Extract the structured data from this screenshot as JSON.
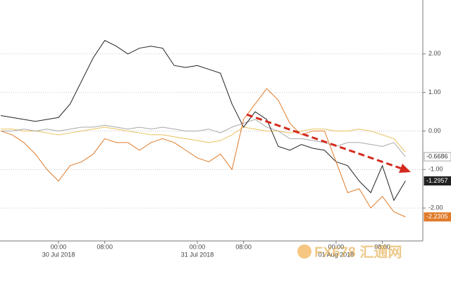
{
  "chart_data": {
    "type": "line",
    "x": [
      -10,
      -8,
      -6,
      -4,
      -2,
      0,
      2,
      4,
      6,
      8,
      10,
      12,
      14,
      16,
      18,
      20,
      22,
      24,
      26,
      28,
      30,
      32,
      34,
      36,
      38,
      40,
      42,
      44,
      46,
      48,
      50,
      52,
      54,
      56,
      58,
      60
    ],
    "xlim": [
      -10,
      63
    ],
    "xticks": [
      {
        "value": 0,
        "label": "00:00"
      },
      {
        "value": 8,
        "label": "08:00"
      },
      {
        "value": 24,
        "label": "00:00"
      },
      {
        "value": 32,
        "label": "08:00"
      },
      {
        "value": 48,
        "label": "00:00"
      },
      {
        "value": 56,
        "label": "08:00"
      }
    ],
    "date_labels": [
      {
        "value": 0,
        "label": "30 Jul 2018"
      },
      {
        "value": 24,
        "label": "31 Jul 2018"
      },
      {
        "value": 48,
        "label": "01 Aug 2018"
      }
    ],
    "ylim": [
      -2.8,
      3.4
    ],
    "yticks": [
      {
        "value": 2,
        "label": "2.00"
      },
      {
        "value": 1,
        "label": "1.00"
      },
      {
        "value": 0,
        "label": "0.00"
      },
      {
        "value": -1,
        "label": "-1.00"
      },
      {
        "value": -2,
        "label": "-2.00"
      }
    ],
    "grid": true,
    "series": [
      {
        "color": "#e8c15a",
        "values": [
          0.05,
          0.05,
          0.0,
          0.0,
          -0.05,
          -0.1,
          -0.05,
          0.0,
          0.05,
          0.1,
          0.05,
          0.0,
          -0.05,
          -0.1,
          -0.1,
          -0.15,
          -0.2,
          -0.25,
          -0.3,
          -0.25,
          -0.1,
          0.1,
          0.05,
          0.0,
          0.0,
          -0.05,
          0.0,
          0.05,
          0.05,
          0.0,
          0.0,
          0.05,
          0.0,
          -0.1,
          -0.2,
          -0.55
        ]
      },
      {
        "color": "#a8a8a8",
        "values": [
          0.0,
          0.0,
          0.05,
          0.0,
          0.05,
          0.0,
          0.05,
          0.1,
          0.1,
          0.15,
          0.1,
          0.05,
          0.1,
          0.05,
          0.1,
          0.05,
          0.0,
          0.0,
          0.05,
          -0.05,
          0.1,
          0.2,
          0.3,
          0.1,
          0.0,
          -0.2,
          -0.2,
          -0.25,
          -0.3,
          -0.4,
          -0.3,
          -0.3,
          -0.35,
          -0.4,
          -0.3,
          -0.6686
        ],
        "last_label": "-0.6686"
      },
      {
        "color": "#222222",
        "values": [
          0.4,
          0.35,
          0.3,
          0.25,
          0.3,
          0.35,
          0.7,
          1.3,
          1.9,
          2.35,
          2.2,
          2.0,
          2.15,
          2.2,
          2.15,
          1.7,
          1.65,
          1.7,
          1.6,
          1.5,
          0.7,
          0.1,
          0.5,
          0.3,
          -0.4,
          -0.5,
          -0.35,
          -0.45,
          -0.5,
          -0.8,
          -0.9,
          -1.3,
          -1.6,
          -0.9,
          -1.8,
          -1.2957
        ],
        "last_label": "-1.2957"
      },
      {
        "color": "#e07b2a",
        "values": [
          0.0,
          -0.1,
          -0.3,
          -0.6,
          -1.0,
          -1.3,
          -0.9,
          -0.8,
          -0.6,
          -0.2,
          -0.3,
          -0.3,
          -0.5,
          -0.3,
          -0.2,
          -0.3,
          -0.5,
          -0.7,
          -0.8,
          -0.6,
          -1.0,
          0.3,
          0.7,
          1.1,
          0.8,
          0.2,
          -0.1,
          0.0,
          0.0,
          -0.8,
          -1.6,
          -1.5,
          -2.0,
          -1.7,
          -2.1,
          -2.2305
        ],
        "last_label": "-2.2305"
      }
    ],
    "watermark": "FX678 汇通网"
  }
}
